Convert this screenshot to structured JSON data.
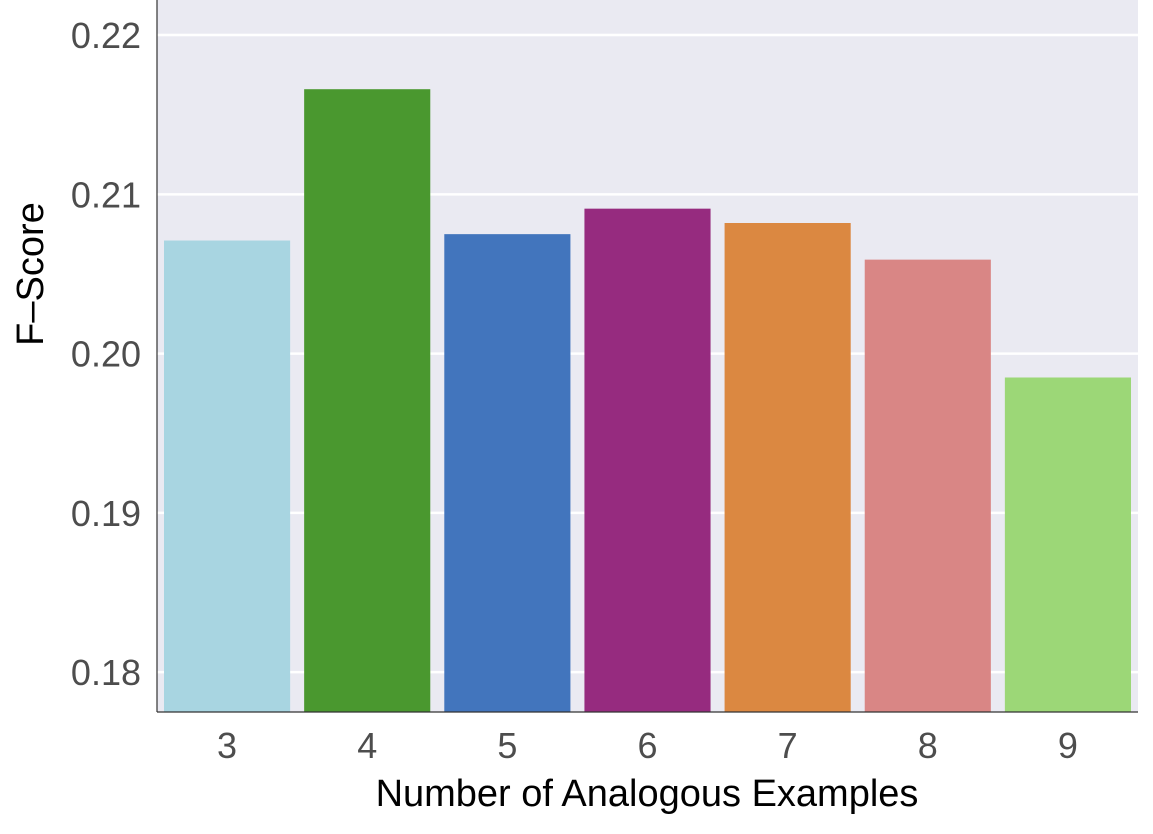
{
  "chart_data": {
    "type": "bar",
    "title": "",
    "xlabel": "Number of Analogous Examples",
    "ylabel": "F–Score",
    "categories": [
      "3",
      "4",
      "5",
      "6",
      "7",
      "8",
      "9"
    ],
    "values": [
      0.2071,
      0.2166,
      0.2075,
      0.2091,
      0.2082,
      0.2059,
      0.1985
    ],
    "colors": [
      "#a8d5e1",
      "#4a982f",
      "#4275bd",
      "#962b7f",
      "#db8841",
      "#d98685",
      "#9cd777"
    ],
    "ylim": [
      0.1775,
      0.2222
    ],
    "yticks": [
      0.18,
      0.19,
      0.2,
      0.21,
      0.22
    ],
    "ytick_labels": [
      "0.18",
      "0.19",
      "0.20",
      "0.21",
      "0.22"
    ],
    "grid": true,
    "grid_axis": "y",
    "legend": "none",
    "background_color": "#eaeaf2",
    "grid_color": "#ffffff"
  }
}
